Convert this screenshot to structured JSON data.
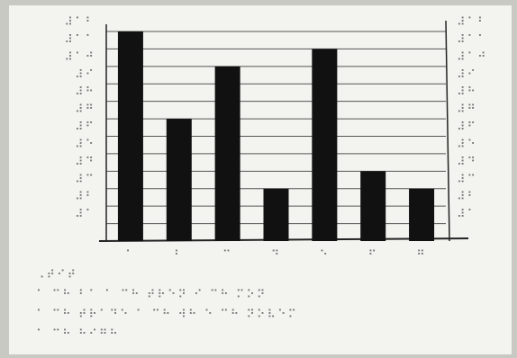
{
  "chart_data": {
    "type": "bar",
    "categories": [
      "⠁",
      "⠃",
      "⠉",
      "⠙",
      "⠑",
      "⠋",
      "⠛"
    ],
    "values": [
      12,
      7,
      10,
      3,
      11,
      4,
      3
    ],
    "color": "#111111",
    "ylim": [
      0,
      12
    ],
    "yticks": [
      {
        "value": 1,
        "label": "⠼⠁"
      },
      {
        "value": 2,
        "label": "⠼⠃"
      },
      {
        "value": 3,
        "label": "⠼⠉"
      },
      {
        "value": 4,
        "label": "⠼⠙"
      },
      {
        "value": 5,
        "label": "⠼⠑"
      },
      {
        "value": 6,
        "label": "⠼⠋"
      },
      {
        "value": 7,
        "label": "⠼⠛"
      },
      {
        "value": 8,
        "label": "⠼⠓"
      },
      {
        "value": 9,
        "label": "⠼⠊"
      },
      {
        "value": 10,
        "label": "⠼⠁⠚"
      },
      {
        "value": 11,
        "label": "⠼⠁⠁"
      },
      {
        "value": 12,
        "label": "⠼⠁⠃"
      }
    ],
    "grid": true,
    "notes": [
      "⠠⠞⠊⠞",
      "⠁ ⠉⠓ ⠃⠁ ⠁ ⠉⠓ ⠞⠗⠑⠝ ⠊ ⠉⠓ ⠍⠕⠝",
      "⠁ ⠉⠓ ⠞⠗⠁⠙⠑ ⠁ ⠉⠓ ⠺⠓ ⠑ ⠉⠓ ⠝⠕⠧⠑⠍",
      "⠁ ⠉⠓ ⠓⠊⠛⠓"
    ]
  }
}
